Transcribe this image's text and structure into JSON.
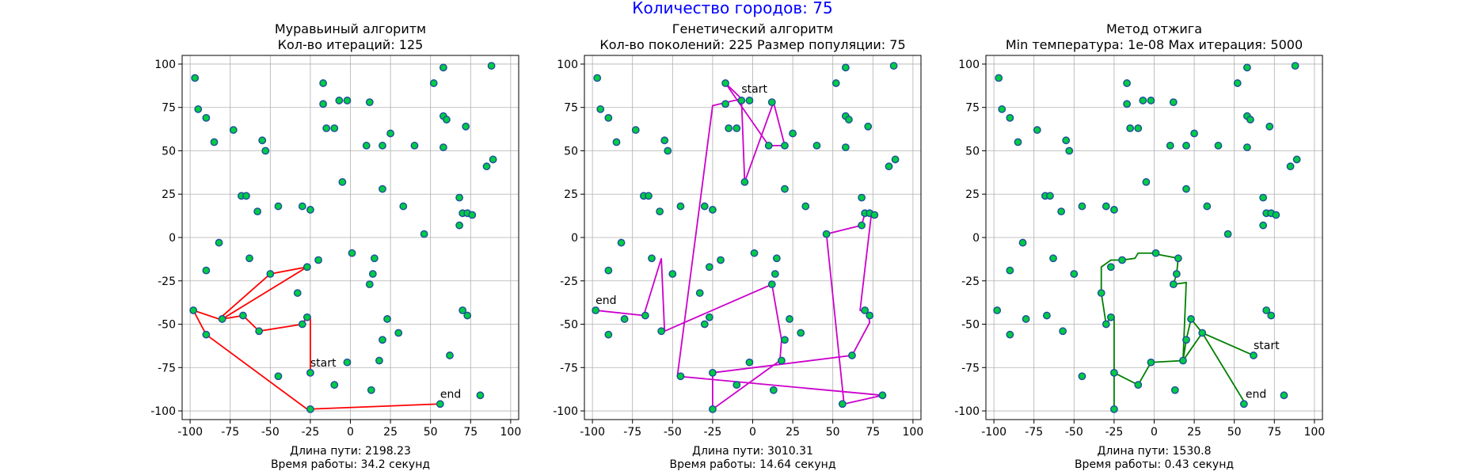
{
  "suptitle": "Количество городов: 75",
  "suptitle_color": "#0000ff",
  "city_fill": "#00cc44",
  "city_edge": "#1f4e9c",
  "chart_data": [
    {
      "type": "line",
      "title": [
        "Муравьиный алгоритм",
        "Кол-во итераций: 125"
      ],
      "caption": [
        "Длина пути: 2198.23",
        "Время работы: 34.2 секунд"
      ],
      "color": "#ff0000",
      "xlim": [
        -105,
        105
      ],
      "ylim": [
        -105,
        105
      ],
      "xticks": [
        -100,
        -75,
        -50,
        -25,
        0,
        25,
        50,
        75,
        100
      ],
      "yticks": [
        -100,
        -75,
        -50,
        -25,
        0,
        25,
        50,
        75,
        100
      ],
      "grid": true,
      "start_label": "start",
      "end_label": "end",
      "route": [
        [
          -25,
          -78
        ],
        [
          -25,
          -46
        ],
        [
          -28,
          -47
        ],
        [
          -30,
          -50
        ],
        [
          -57,
          -54
        ],
        [
          -67,
          -45
        ],
        [
          -80,
          -47
        ],
        [
          -27,
          -17
        ],
        [
          -50,
          -21
        ],
        [
          -82,
          -47
        ],
        [
          -98,
          -42
        ],
        [
          -90,
          -56
        ],
        [
          -27,
          -99
        ],
        [
          56,
          -96
        ]
      ]
    },
    {
      "type": "line",
      "title": [
        "Генетический алгоритм",
        "Кол-во поколений: 225 Размер популяции: 75"
      ],
      "caption": [
        "Длина пути: 3010.31",
        "Время работы: 14.64 секунд"
      ],
      "color": "#cc00cc",
      "xlim": [
        -105,
        105
      ],
      "ylim": [
        -105,
        105
      ],
      "xticks": [
        -100,
        -75,
        -50,
        -25,
        0,
        25,
        50,
        75,
        100
      ],
      "yticks": [
        -100,
        -75,
        -50,
        -25,
        0,
        25,
        50,
        75,
        100
      ],
      "grid": true,
      "start_label": "start",
      "end_label": "end",
      "route": [
        [
          -7,
          80
        ],
        [
          -5,
          32
        ],
        [
          13,
          78
        ],
        [
          20,
          53
        ],
        [
          10,
          53
        ],
        [
          -17,
          89
        ],
        [
          -7,
          80
        ],
        [
          -25,
          76
        ],
        [
          -47,
          -80
        ],
        [
          81,
          -91
        ],
        [
          57,
          -96
        ],
        [
          46,
          2
        ],
        [
          68,
          7
        ],
        [
          70,
          14
        ],
        [
          72,
          14
        ],
        [
          74,
          13
        ],
        [
          67,
          -42
        ],
        [
          72,
          -44
        ],
        [
          73,
          -49
        ],
        [
          62,
          -68
        ],
        [
          -25,
          -78
        ],
        [
          -25,
          -99
        ],
        [
          17,
          -71
        ],
        [
          18,
          -59
        ],
        [
          12,
          -27
        ],
        [
          -55,
          -54
        ],
        [
          -57,
          -12
        ],
        [
          -68,
          -45
        ],
        [
          -98,
          -42
        ]
      ]
    },
    {
      "type": "line",
      "title": [
        "Метод отжига",
        "Min температура: 1e-08 Max итерация: 5000"
      ],
      "caption": [
        "Длина пути: 1530.8",
        "Время работы: 0.43 секунд"
      ],
      "color": "#008000",
      "xlim": [
        -105,
        105
      ],
      "ylim": [
        -105,
        105
      ],
      "xticks": [
        -100,
        -75,
        -50,
        -25,
        0,
        25,
        50,
        75,
        100
      ],
      "yticks": [
        -100,
        -75,
        -50,
        -25,
        0,
        25,
        50,
        75,
        100
      ],
      "grid": true,
      "start_label": "start",
      "end_label": "end",
      "route": [
        [
          62,
          -68
        ],
        [
          30,
          -55
        ],
        [
          23,
          -47
        ],
        [
          20,
          -59
        ],
        [
          18,
          -71
        ],
        [
          -2,
          -72
        ],
        [
          -10,
          -85
        ],
        [
          -25,
          -78
        ],
        [
          -25,
          -99
        ],
        [
          -25,
          -46
        ],
        [
          -28,
          -47
        ],
        [
          -30,
          -50
        ],
        [
          -33,
          -32
        ],
        [
          -33,
          -17
        ],
        [
          -27,
          -13
        ],
        [
          -20,
          -13
        ],
        [
          -12,
          -12
        ],
        [
          -10,
          -9
        ],
        [
          -2,
          -9
        ],
        [
          15,
          -12
        ],
        [
          14,
          -21
        ],
        [
          12,
          -27
        ],
        [
          20,
          -26
        ],
        [
          18,
          -71
        ],
        [
          30,
          -55
        ],
        [
          57,
          -96
        ]
      ]
    }
  ],
  "cities": [
    [
      -97,
      92
    ],
    [
      -95,
      74
    ],
    [
      -90,
      69
    ],
    [
      -85,
      55
    ],
    [
      -73,
      62
    ],
    [
      -55,
      56
    ],
    [
      -53,
      50
    ],
    [
      -68,
      24
    ],
    [
      -65,
      24
    ],
    [
      -58,
      15
    ],
    [
      -45,
      18
    ],
    [
      -30,
      18
    ],
    [
      -25,
      16
    ],
    [
      -17,
      77
    ],
    [
      -7,
      79
    ],
    [
      -17,
      89
    ],
    [
      -10,
      63
    ],
    [
      -15,
      63
    ],
    [
      -2,
      79
    ],
    [
      12,
      78
    ],
    [
      20,
      53
    ],
    [
      10,
      53
    ],
    [
      25,
      60
    ],
    [
      40,
      53
    ],
    [
      52,
      89
    ],
    [
      58,
      98
    ],
    [
      58,
      70
    ],
    [
      60,
      68
    ],
    [
      72,
      64
    ],
    [
      88,
      99
    ],
    [
      85,
      41
    ],
    [
      89,
      45
    ],
    [
      58,
      52
    ],
    [
      -5,
      32
    ],
    [
      20,
      28
    ],
    [
      33,
      18
    ],
    [
      46,
      2
    ],
    [
      68,
      23
    ],
    [
      68,
      7
    ],
    [
      70,
      14
    ],
    [
      73,
      14
    ],
    [
      76,
      13
    ],
    [
      -82,
      -3
    ],
    [
      -90,
      -19
    ],
    [
      -98,
      -42
    ],
    [
      -90,
      -56
    ],
    [
      -80,
      -47
    ],
    [
      -67,
      -45
    ],
    [
      -63,
      -12
    ],
    [
      -50,
      -21
    ],
    [
      -57,
      -54
    ],
    [
      -27,
      -17
    ],
    [
      -20,
      -13
    ],
    [
      -33,
      -32
    ],
    [
      -30,
      -50
    ],
    [
      -27,
      -46
    ],
    [
      -25,
      -78
    ],
    [
      -25,
      -99
    ],
    [
      -45,
      -80
    ],
    [
      -2,
      -72
    ],
    [
      -10,
      -85
    ],
    [
      1,
      -9
    ],
    [
      15,
      -12
    ],
    [
      14,
      -21
    ],
    [
      12,
      -27
    ],
    [
      18,
      -71
    ],
    [
      20,
      -59
    ],
    [
      23,
      -47
    ],
    [
      30,
      -55
    ],
    [
      13,
      -88
    ],
    [
      62,
      -68
    ],
    [
      56,
      -96
    ],
    [
      81,
      -91
    ],
    [
      70,
      -42
    ],
    [
      73,
      -45
    ]
  ]
}
